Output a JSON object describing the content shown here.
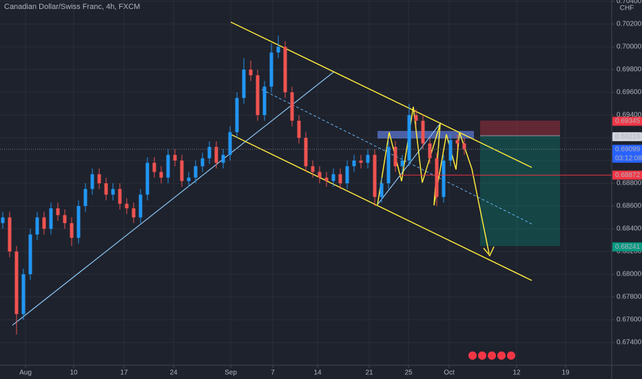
{
  "chart_data": {
    "type": "candlestick",
    "title": "Canadian Dollar/Swiss Franc, 4h, FXCM",
    "currency": "CHF",
    "up_color": "#2196f3",
    "down_color": "#ef5350",
    "xlim": [
      -0.4,
      88.4
    ],
    "xticks": [
      {
        "value": 3.3,
        "label": "Aug"
      },
      {
        "value": 10.3,
        "label": "10"
      },
      {
        "value": 17.6,
        "label": "17"
      },
      {
        "value": 24.8,
        "label": "24"
      },
      {
        "value": 33.1,
        "label": "Sep"
      },
      {
        "value": 39.2,
        "label": "7"
      },
      {
        "value": 45.7,
        "label": "14"
      },
      {
        "value": 53.2,
        "label": "21"
      },
      {
        "value": 58.9,
        "label": "25"
      },
      {
        "value": 64.8,
        "label": "Oct"
      },
      {
        "value": 74.6,
        "label": "12"
      },
      {
        "value": 81.7,
        "label": "19"
      }
    ],
    "ylim": [
      0.672,
      0.70412
    ],
    "yticks": [
      {
        "value": 0.704,
        "label": "0.70400"
      },
      {
        "value": 0.702,
        "label": "0.70200"
      },
      {
        "value": 0.7,
        "label": "0.70000"
      },
      {
        "value": 0.698,
        "label": "0.69800"
      },
      {
        "value": 0.696,
        "label": "0.69600"
      },
      {
        "value": 0.694,
        "label": "0.69400"
      },
      {
        "value": 0.692,
        "label": "0.69200"
      },
      {
        "value": 0.69,
        "label": "0.69000"
      },
      {
        "value": 0.688,
        "label": "0.68800"
      },
      {
        "value": 0.686,
        "label": "0.68600"
      },
      {
        "value": 0.684,
        "label": "0.68400"
      },
      {
        "value": 0.682,
        "label": "0.68200"
      },
      {
        "value": 0.68,
        "label": "0.68000"
      },
      {
        "value": 0.678,
        "label": "0.67800"
      },
      {
        "value": 0.676,
        "label": "0.67600"
      },
      {
        "value": 0.674,
        "label": "0.67400"
      }
    ],
    "grid": true,
    "price_tags": [
      {
        "value": 0.69345,
        "label": "0.69345",
        "color": "#f23645",
        "text_color": "#ffffff",
        "line": false
      },
      {
        "value": 0.6921,
        "label": "0.69210",
        "color": "#d1d4dc",
        "text_color": "#131722",
        "line": false
      },
      {
        "value": 0.69099,
        "label": "0.69099",
        "color": "#2962ff",
        "text_color": "#ffffff",
        "line": "dotted",
        "countdown": "03:12:08"
      },
      {
        "value": 0.68872,
        "label": "0.68872",
        "color": "#f23645",
        "text_color": "#ffffff",
        "line": "solid"
      },
      {
        "value": 0.68241,
        "label": "0.68241",
        "color": "#089981",
        "text_color": "#ffffff",
        "line": false
      }
    ],
    "ohlc": [
      [
        0.6845,
        0.6855,
        0.684,
        0.685
      ],
      [
        0.685,
        0.6855,
        0.6815,
        0.682
      ],
      [
        0.682,
        0.6825,
        0.6747,
        0.6765
      ],
      [
        0.6765,
        0.6805,
        0.676,
        0.68
      ],
      [
        0.68,
        0.684,
        0.6795,
        0.6835
      ],
      [
        0.6835,
        0.6855,
        0.683,
        0.685
      ],
      [
        0.685,
        0.6855,
        0.6835,
        0.684
      ],
      [
        0.684,
        0.6863,
        0.6835,
        0.6858
      ],
      [
        0.6858,
        0.6863,
        0.6847,
        0.6852
      ],
      [
        0.6852,
        0.6857,
        0.684,
        0.6845
      ],
      [
        0.6845,
        0.685,
        0.6825,
        0.6832
      ],
      [
        0.6832,
        0.6865,
        0.6827,
        0.686
      ],
      [
        0.686,
        0.688,
        0.6855,
        0.6875
      ],
      [
        0.6875,
        0.6893,
        0.687,
        0.6888
      ],
      [
        0.6888,
        0.6893,
        0.6875,
        0.688
      ],
      [
        0.688,
        0.6885,
        0.6865,
        0.687
      ],
      [
        0.687,
        0.688,
        0.6865,
        0.6875
      ],
      [
        0.6875,
        0.688,
        0.6857,
        0.6862
      ],
      [
        0.6862,
        0.6867,
        0.6853,
        0.6858
      ],
      [
        0.6858,
        0.6863,
        0.6845,
        0.685
      ],
      [
        0.685,
        0.6875,
        0.6845,
        0.687
      ],
      [
        0.687,
        0.6903,
        0.6865,
        0.6898
      ],
      [
        0.6898,
        0.6903,
        0.6885,
        0.689
      ],
      [
        0.689,
        0.6895,
        0.688,
        0.6885
      ],
      [
        0.6885,
        0.691,
        0.688,
        0.6905
      ],
      [
        0.6905,
        0.691,
        0.6895,
        0.69
      ],
      [
        0.69,
        0.6905,
        0.6877,
        0.6882
      ],
      [
        0.6882,
        0.689,
        0.6877,
        0.6885
      ],
      [
        0.6885,
        0.69,
        0.688,
        0.6895
      ],
      [
        0.6895,
        0.6907,
        0.689,
        0.6902
      ],
      [
        0.6902,
        0.6917,
        0.6897,
        0.6912
      ],
      [
        0.6912,
        0.6917,
        0.6893,
        0.6898
      ],
      [
        0.6898,
        0.691,
        0.6893,
        0.6905
      ],
      [
        0.6905,
        0.693,
        0.69,
        0.6925
      ],
      [
        0.6925,
        0.696,
        0.692,
        0.6955
      ],
      [
        0.6955,
        0.699,
        0.695,
        0.698
      ],
      [
        0.698,
        0.6988,
        0.697,
        0.6975
      ],
      [
        0.6975,
        0.698,
        0.6935,
        0.694
      ],
      [
        0.694,
        0.697,
        0.6935,
        0.6965
      ],
      [
        0.6965,
        0.7003,
        0.696,
        0.6995
      ],
      [
        0.6995,
        0.701,
        0.699,
        0.7
      ],
      [
        0.7,
        0.7005,
        0.6955,
        0.696
      ],
      [
        0.696,
        0.6965,
        0.693,
        0.6935
      ],
      [
        0.6935,
        0.694,
        0.6915,
        0.692
      ],
      [
        0.692,
        0.6925,
        0.689,
        0.6895
      ],
      [
        0.6895,
        0.69,
        0.6885,
        0.689
      ],
      [
        0.689,
        0.6895,
        0.688,
        0.6885
      ],
      [
        0.6885,
        0.689,
        0.6877,
        0.6882
      ],
      [
        0.6882,
        0.6893,
        0.6877,
        0.6888
      ],
      [
        0.6888,
        0.6893,
        0.6875,
        0.688
      ],
      [
        0.688,
        0.69,
        0.6875,
        0.6895
      ],
      [
        0.6895,
        0.6905,
        0.689,
        0.69
      ],
      [
        0.69,
        0.6905,
        0.6893,
        0.6898
      ],
      [
        0.6898,
        0.691,
        0.6893,
        0.6905
      ],
      [
        0.6905,
        0.691,
        0.686,
        0.6868
      ],
      [
        0.6868,
        0.6885,
        0.6863,
        0.688
      ],
      [
        0.688,
        0.6917,
        0.6875,
        0.6912
      ],
      [
        0.6912,
        0.6917,
        0.689,
        0.6895
      ],
      [
        0.6895,
        0.6905,
        0.689,
        0.69
      ],
      [
        0.69,
        0.695,
        0.6895,
        0.694
      ],
      [
        0.694,
        0.6945,
        0.693,
        0.6935
      ],
      [
        0.6935,
        0.694,
        0.691,
        0.6915
      ],
      [
        0.6915,
        0.692,
        0.6897,
        0.6902
      ],
      [
        0.6902,
        0.6907,
        0.686,
        0.6868
      ],
      [
        0.6868,
        0.6905,
        0.6863,
        0.69
      ],
      [
        0.69,
        0.6923,
        0.6895,
        0.6918
      ],
      [
        0.6918,
        0.6923,
        0.691,
        0.6915
      ],
      [
        0.6915,
        0.692,
        0.6905,
        0.691
      ]
    ]
  }
}
